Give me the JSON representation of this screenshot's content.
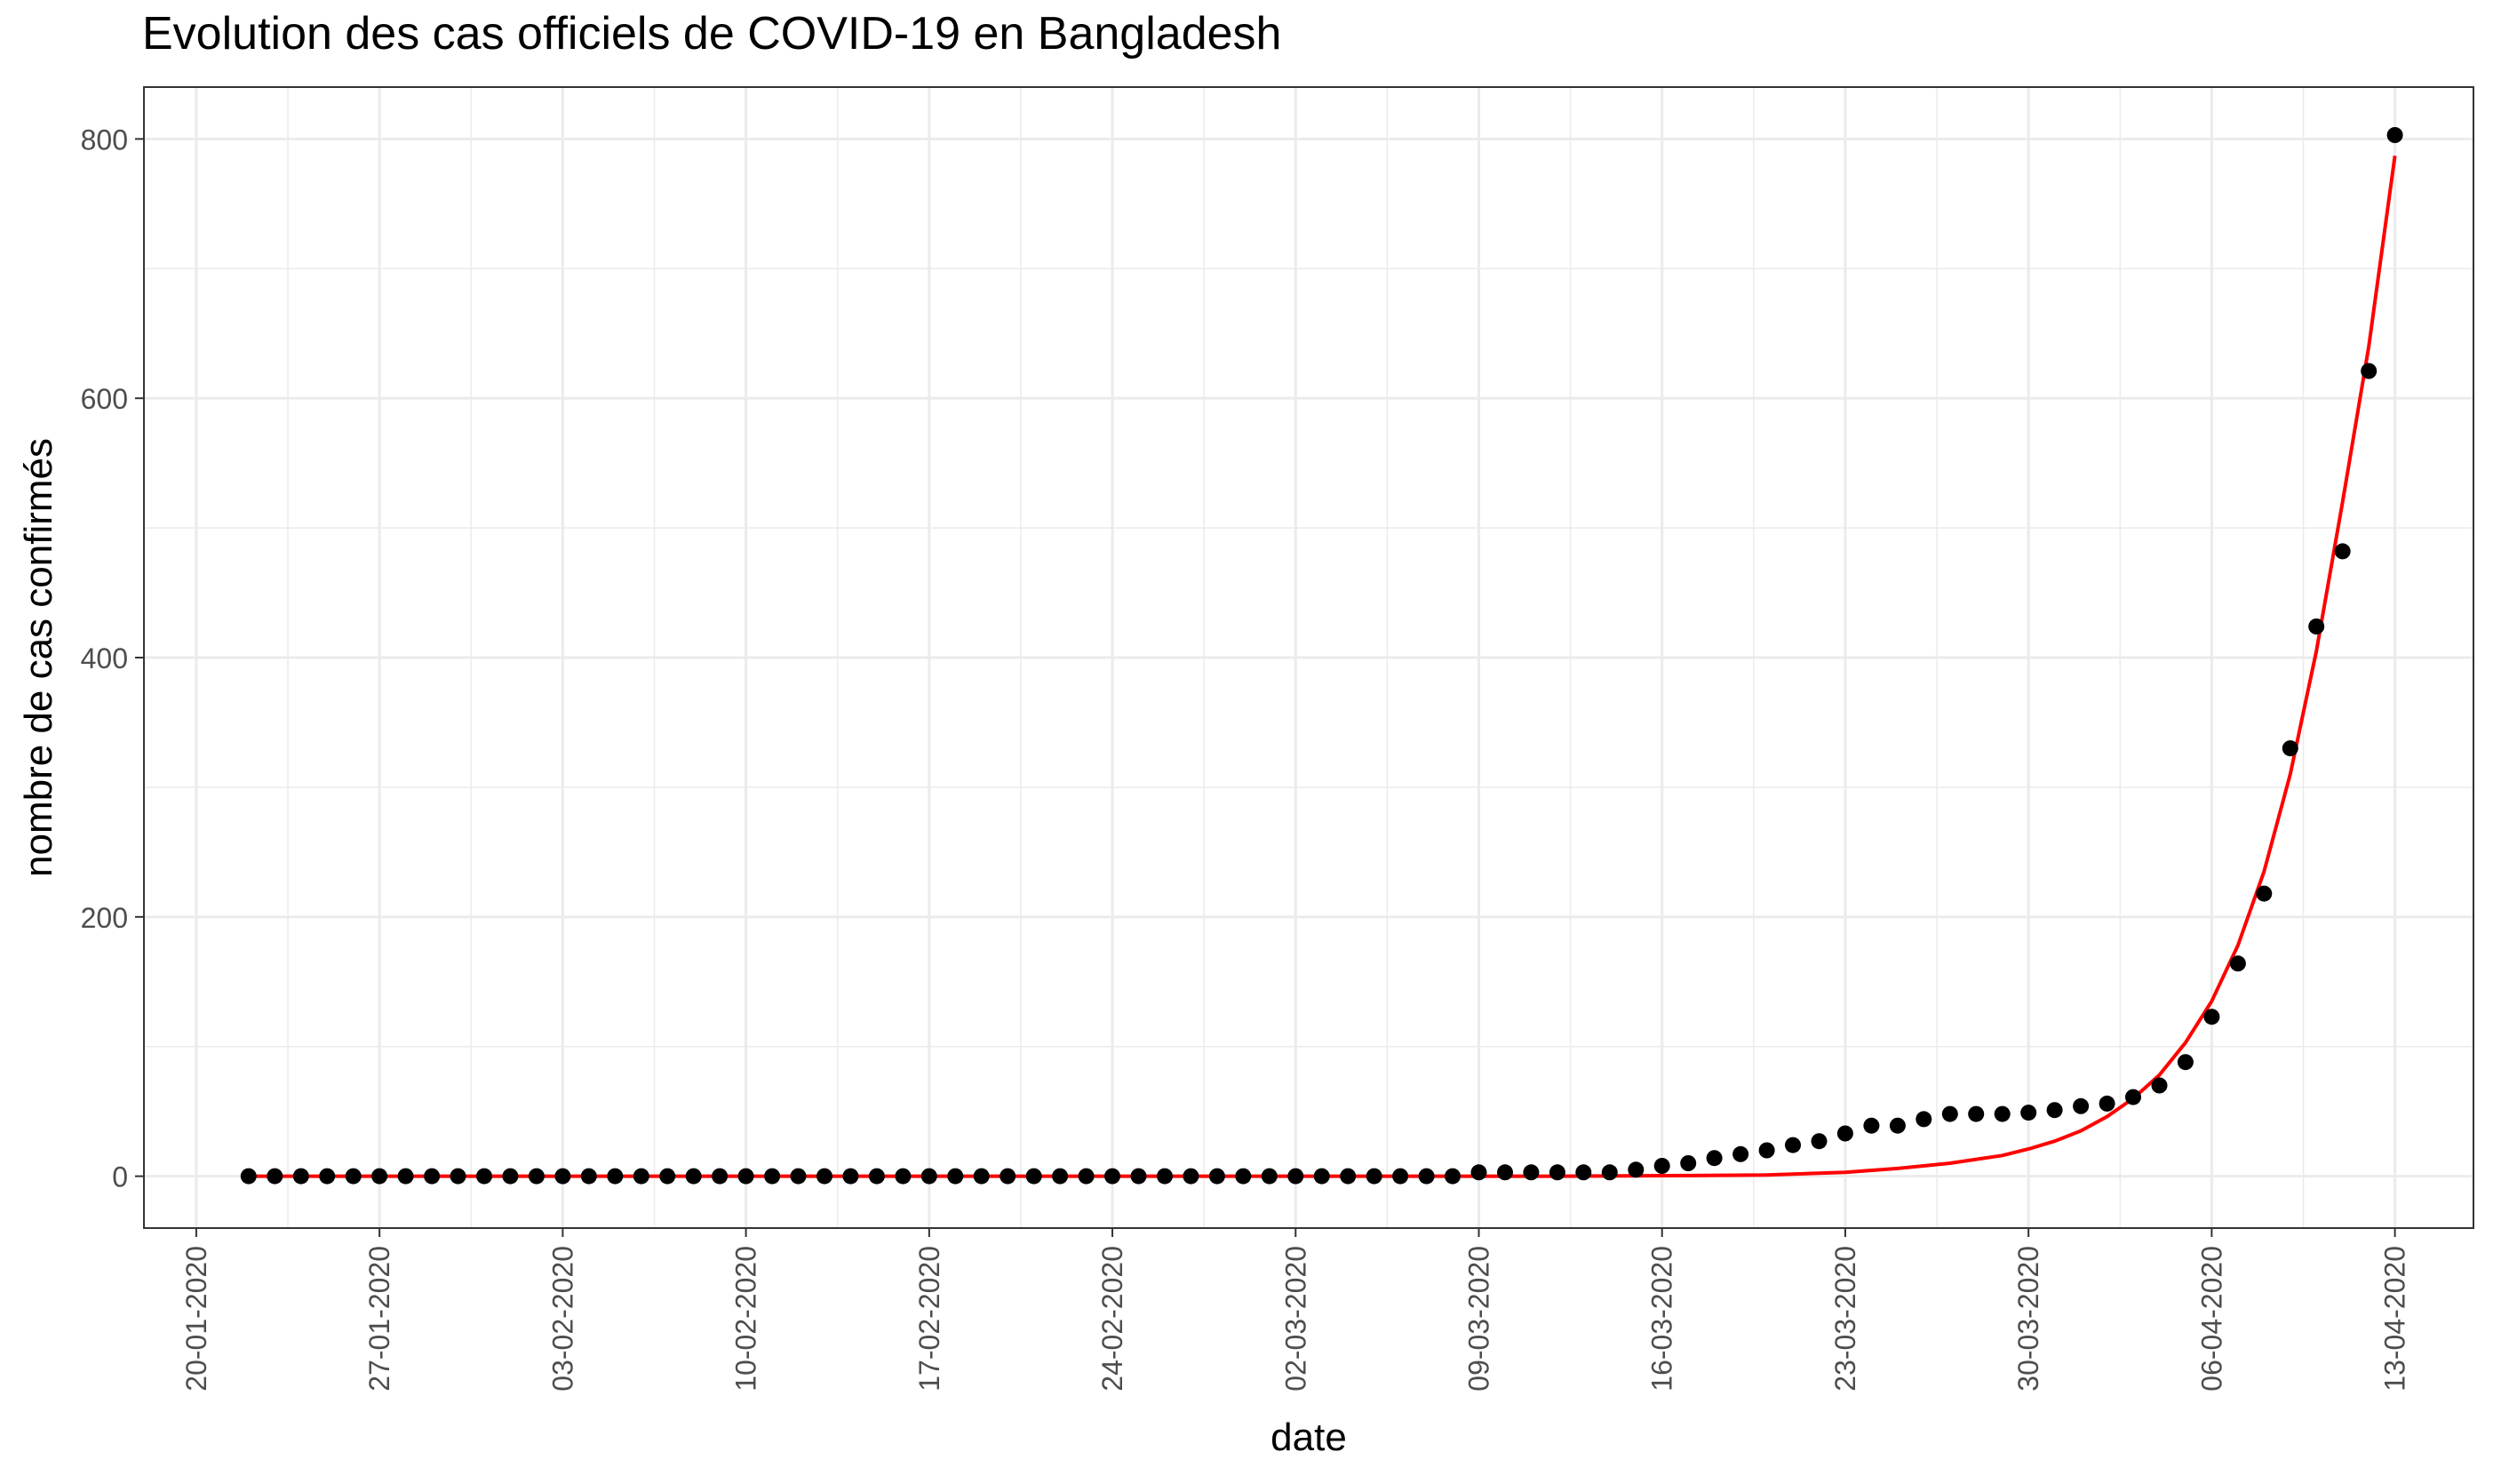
{
  "chart_data": {
    "type": "scatter",
    "title": "Evolution des cas officiels de COVID-19 en Bangladesh",
    "xlabel": "date",
    "ylabel": "nombre de cas confirmés",
    "xlim": [
      "2020-01-18",
      "2020-04-16"
    ],
    "ylim": [
      -40,
      840
    ],
    "x_ticks": [
      "20-01-2020",
      "27-01-2020",
      "03-02-2020",
      "10-02-2020",
      "17-02-2020",
      "24-02-2020",
      "02-03-2020",
      "09-03-2020",
      "16-03-2020",
      "23-03-2020",
      "30-03-2020",
      "06-04-2020",
      "13-04-2020"
    ],
    "y_ticks": [
      0,
      200,
      400,
      600,
      800
    ],
    "grid": true,
    "legend": "none",
    "colors": {
      "points": "#000000",
      "fit_line": "#ff0000",
      "grid": "#ebebeb",
      "panel_border": "#333333",
      "tick_label": "#4d4d4d"
    },
    "observed": {
      "x": [
        "2020-01-22",
        "2020-01-23",
        "2020-01-24",
        "2020-01-25",
        "2020-01-26",
        "2020-01-27",
        "2020-01-28",
        "2020-01-29",
        "2020-01-30",
        "2020-01-31",
        "2020-02-01",
        "2020-02-02",
        "2020-02-03",
        "2020-02-04",
        "2020-02-05",
        "2020-02-06",
        "2020-02-07",
        "2020-02-08",
        "2020-02-09",
        "2020-02-10",
        "2020-02-11",
        "2020-02-12",
        "2020-02-13",
        "2020-02-14",
        "2020-02-15",
        "2020-02-16",
        "2020-02-17",
        "2020-02-18",
        "2020-02-19",
        "2020-02-20",
        "2020-02-21",
        "2020-02-22",
        "2020-02-23",
        "2020-02-24",
        "2020-02-25",
        "2020-02-26",
        "2020-02-27",
        "2020-02-28",
        "2020-02-29",
        "2020-03-01",
        "2020-03-02",
        "2020-03-03",
        "2020-03-04",
        "2020-03-05",
        "2020-03-06",
        "2020-03-07",
        "2020-03-08",
        "2020-03-09",
        "2020-03-10",
        "2020-03-11",
        "2020-03-12",
        "2020-03-13",
        "2020-03-14",
        "2020-03-15",
        "2020-03-16",
        "2020-03-17",
        "2020-03-18",
        "2020-03-19",
        "2020-03-20",
        "2020-03-21",
        "2020-03-22",
        "2020-03-23",
        "2020-03-24",
        "2020-03-25",
        "2020-03-26",
        "2020-03-27",
        "2020-03-28",
        "2020-03-29",
        "2020-03-30",
        "2020-03-31",
        "2020-04-01",
        "2020-04-02",
        "2020-04-03",
        "2020-04-04",
        "2020-04-05",
        "2020-04-06",
        "2020-04-07",
        "2020-04-08",
        "2020-04-09",
        "2020-04-10",
        "2020-04-11",
        "2020-04-12",
        "2020-04-13"
      ],
      "y": [
        0,
        0,
        0,
        0,
        0,
        0,
        0,
        0,
        0,
        0,
        0,
        0,
        0,
        0,
        0,
        0,
        0,
        0,
        0,
        0,
        0,
        0,
        0,
        0,
        0,
        0,
        0,
        0,
        0,
        0,
        0,
        0,
        0,
        0,
        0,
        0,
        0,
        0,
        0,
        0,
        0,
        0,
        0,
        0,
        0,
        0,
        0,
        3,
        3,
        3,
        3,
        3,
        3,
        5,
        8,
        10,
        14,
        17,
        20,
        24,
        27,
        33,
        39,
        39,
        44,
        48,
        48,
        48,
        49,
        51,
        54,
        56,
        61,
        70,
        88,
        123,
        164,
        218,
        330,
        424,
        482,
        621,
        803
      ]
    },
    "fitted": {
      "x": [
        "2020-01-22",
        "2020-02-01",
        "2020-02-11",
        "2020-02-21",
        "2020-03-02",
        "2020-03-12",
        "2020-03-17",
        "2020-03-20",
        "2020-03-23",
        "2020-03-25",
        "2020-03-27",
        "2020-03-29",
        "2020-03-30",
        "2020-03-31",
        "2020-04-01",
        "2020-04-02",
        "2020-04-03",
        "2020-04-04",
        "2020-04-05",
        "2020-04-06",
        "2020-04-07",
        "2020-04-08",
        "2020-04-09",
        "2020-04-10",
        "2020-04-11",
        "2020-04-12",
        "2020-04-13"
      ],
      "y": [
        0,
        0,
        0,
        0,
        0,
        0,
        0.5,
        1,
        3,
        6,
        10,
        16,
        21,
        27,
        35,
        46,
        60,
        78,
        103,
        135,
        178,
        235,
        310,
        405,
        520,
        640,
        787
      ]
    }
  }
}
